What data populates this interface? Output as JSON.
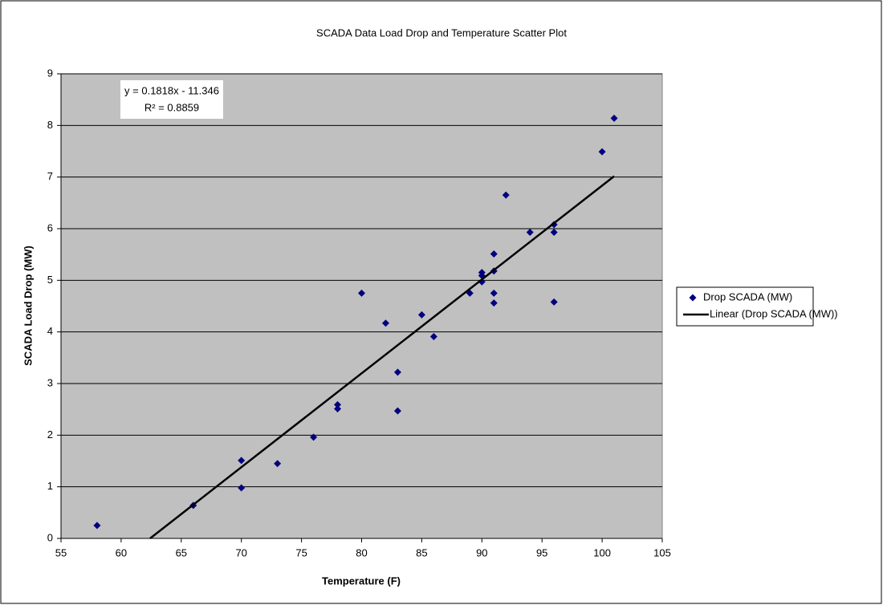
{
  "chart_data": {
    "type": "scatter",
    "title": "SCADA Data Load Drop and Temperature Scatter Plot",
    "x_label": "Temperature (F)",
    "y_label": "SCADA Load Drop (MW)",
    "annotation": {
      "equation": "y = 0.1818x - 11.346",
      "r_squared": "R² = 0.8859"
    },
    "xlim": [
      55,
      105
    ],
    "xticks": [
      55,
      60,
      65,
      70,
      75,
      80,
      85,
      90,
      95,
      100,
      105
    ],
    "ylim": [
      0,
      9
    ],
    "yticks": [
      0,
      1,
      2,
      3,
      4,
      5,
      6,
      7,
      8,
      9
    ],
    "grid": true,
    "legend": "right",
    "plot_background": "#c0c0c0",
    "series": [
      {
        "name": "Drop SCADA (MW)",
        "color": "#000080",
        "mode": "markers",
        "x": [
          58,
          66,
          70,
          70,
          73,
          76,
          78,
          78,
          80,
          82,
          83,
          83,
          85,
          86,
          89,
          90,
          90,
          90,
          91,
          91,
          91,
          91,
          92,
          94,
          96,
          96,
          96,
          100,
          101
        ],
        "values": [
          0.25,
          0.64,
          1.51,
          0.98,
          1.45,
          1.96,
          2.59,
          2.51,
          4.75,
          4.17,
          3.22,
          2.47,
          4.33,
          3.91,
          4.75,
          5.15,
          5.09,
          4.97,
          5.51,
          5.18,
          4.75,
          4.56,
          6.65,
          5.93,
          6.08,
          5.93,
          4.58,
          7.49,
          8.14
        ]
      },
      {
        "name": "Linear (Drop SCADA (MW))",
        "color": "#000000",
        "mode": "line",
        "x": [
          62.41,
          101
        ],
        "values": [
          0,
          7.016
        ]
      }
    ]
  }
}
